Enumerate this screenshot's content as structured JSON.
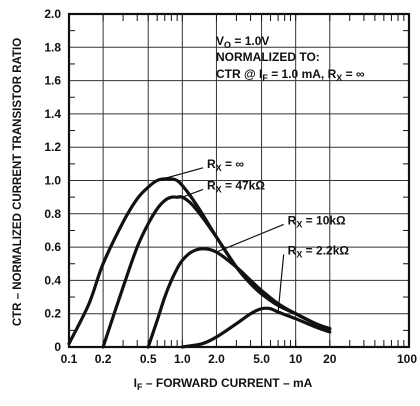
{
  "chart_data": {
    "type": "line",
    "x_scale": "log",
    "xlim": [
      0.1,
      100
    ],
    "ylim": [
      0,
      2.0
    ],
    "grid": true,
    "xlabel": {
      "main": "I",
      "sub": "F",
      "rest": " – FORWARD CURRENT – mA"
    },
    "ylabel": "CTR – NORMALIZED CURRENT TRANSISTOR RATIO",
    "x_tick_labels": [
      {
        "x": 0.1,
        "label": "0.1"
      },
      {
        "x": 0.2,
        "label": "0.2"
      },
      {
        "x": 0.5,
        "label": "0.5"
      },
      {
        "x": 1.0,
        "label": "1.0"
      },
      {
        "x": 2.0,
        "label": "2.0"
      },
      {
        "x": 5.0,
        "label": "5.0"
      },
      {
        "x": 10,
        "label": "10"
      },
      {
        "x": 20,
        "label": "20"
      },
      {
        "x": 100,
        "label": "100"
      }
    ],
    "y_tick_labels": [
      {
        "y": 0,
        "label": "0"
      },
      {
        "y": 0.2,
        "label": "0.2"
      },
      {
        "y": 0.4,
        "label": "0.4"
      },
      {
        "y": 0.6,
        "label": "0.6"
      },
      {
        "y": 0.8,
        "label": "0.8"
      },
      {
        "y": 1.0,
        "label": "1.0"
      },
      {
        "y": 1.2,
        "label": "1.2"
      },
      {
        "y": 1.4,
        "label": "1.4"
      },
      {
        "y": 1.6,
        "label": "1.6"
      },
      {
        "y": 1.8,
        "label": "1.8"
      },
      {
        "y": 2.0,
        "label": "2.0"
      }
    ],
    "annotation": {
      "line1": {
        "main": "V",
        "sub": "O",
        "rest": " = 1.0V"
      },
      "line2": "NORMALIZED TO:",
      "line3": {
        "a": "CTR @ I",
        "sub1": "F",
        "b": " = 1.0 mA, R",
        "sub2": "X",
        "c": " = ∞"
      }
    },
    "series": [
      {
        "name": "R_X = ∞",
        "label": {
          "main": "R",
          "sub": "X",
          "rest": " = ∞"
        },
        "label_at": [
          1.65,
          1.1
        ],
        "x": [
          0.1,
          0.15,
          0.2,
          0.3,
          0.4,
          0.5,
          0.6,
          0.7,
          0.8,
          0.9,
          1.0,
          1.2,
          1.5,
          2.0,
          3.0,
          4.0,
          5.0,
          7.0,
          10,
          15,
          20
        ],
        "y": [
          0.02,
          0.26,
          0.5,
          0.75,
          0.89,
          0.96,
          1.0,
          1.01,
          1.01,
          1.0,
          0.97,
          0.9,
          0.8,
          0.66,
          0.48,
          0.38,
          0.32,
          0.25,
          0.2,
          0.14,
          0.11
        ]
      },
      {
        "name": "R_X = 47kΩ",
        "label": {
          "main": "R",
          "sub": "X",
          "rest": " = 47kΩ"
        },
        "label_at": [
          1.65,
          0.97
        ],
        "x": [
          0.2,
          0.3,
          0.4,
          0.5,
          0.6,
          0.7,
          0.8,
          0.9,
          1.0,
          1.2,
          1.5,
          2.0,
          3.0,
          4.0,
          5.0,
          7.0,
          10,
          15,
          20
        ],
        "y": [
          0.0,
          0.36,
          0.6,
          0.74,
          0.83,
          0.88,
          0.9,
          0.9,
          0.9,
          0.86,
          0.78,
          0.66,
          0.48,
          0.38,
          0.32,
          0.25,
          0.2,
          0.14,
          0.11
        ]
      },
      {
        "name": "R_X = 10kΩ",
        "label": {
          "main": "R",
          "sub": "X",
          "rest": " = 10kΩ"
        },
        "label_at": [
          8.5,
          0.76
        ],
        "x": [
          0.5,
          0.6,
          0.7,
          0.8,
          0.9,
          1.0,
          1.2,
          1.5,
          2.0,
          3.0,
          4.0,
          5.0,
          7.0,
          10,
          15,
          20
        ],
        "y": [
          0.0,
          0.16,
          0.3,
          0.4,
          0.47,
          0.52,
          0.57,
          0.59,
          0.57,
          0.48,
          0.4,
          0.34,
          0.26,
          0.2,
          0.14,
          0.11
        ]
      },
      {
        "name": "R_X = 2.2kΩ",
        "label": {
          "main": "R",
          "sub": "X",
          "rest": " = 2.2kΩ"
        },
        "label_at": [
          8.5,
          0.58
        ],
        "x": [
          1.0,
          1.5,
          2.0,
          3.0,
          4.0,
          5.0,
          6.0,
          7.0,
          10,
          15,
          20
        ],
        "y": [
          0.0,
          0.02,
          0.06,
          0.14,
          0.2,
          0.23,
          0.23,
          0.21,
          0.17,
          0.12,
          0.09
        ]
      }
    ]
  }
}
